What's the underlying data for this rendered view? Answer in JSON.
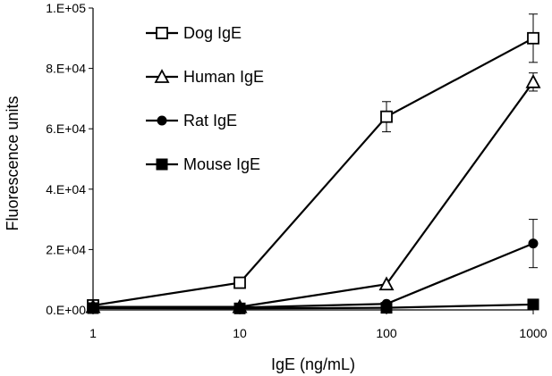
{
  "chart_data": {
    "type": "line",
    "xscale": "log",
    "x": [
      1,
      10,
      100,
      1000
    ],
    "xticks": [
      "1",
      "10",
      "100",
      "1000"
    ],
    "xlabel": "IgE (ng/mL)",
    "ylabel": "Fluorescence units",
    "ylim": [
      0,
      100000
    ],
    "yticks": [
      "0.E+00",
      "2.E+04",
      "4.E+04",
      "6.E+04",
      "8.E+04",
      "1.E+05"
    ],
    "grid": false,
    "legend_position": "top-left",
    "series": [
      {
        "name": "Dog IgE",
        "marker": "open-square",
        "values": [
          1500,
          9000,
          64000,
          90000
        ],
        "errors": [
          0,
          0,
          5000,
          8000
        ]
      },
      {
        "name": "Human IgE",
        "marker": "open-triangle",
        "values": [
          1000,
          1000,
          8500,
          75500
        ],
        "errors": [
          0,
          0,
          0,
          3000
        ]
      },
      {
        "name": "Rat IgE",
        "marker": "filled-circle",
        "values": [
          800,
          800,
          2000,
          22000
        ],
        "errors": [
          0,
          0,
          0,
          8000
        ]
      },
      {
        "name": "Mouse IgE",
        "marker": "filled-square",
        "values": [
          600,
          500,
          700,
          1800
        ],
        "errors": [
          0,
          0,
          0,
          0
        ]
      }
    ]
  }
}
